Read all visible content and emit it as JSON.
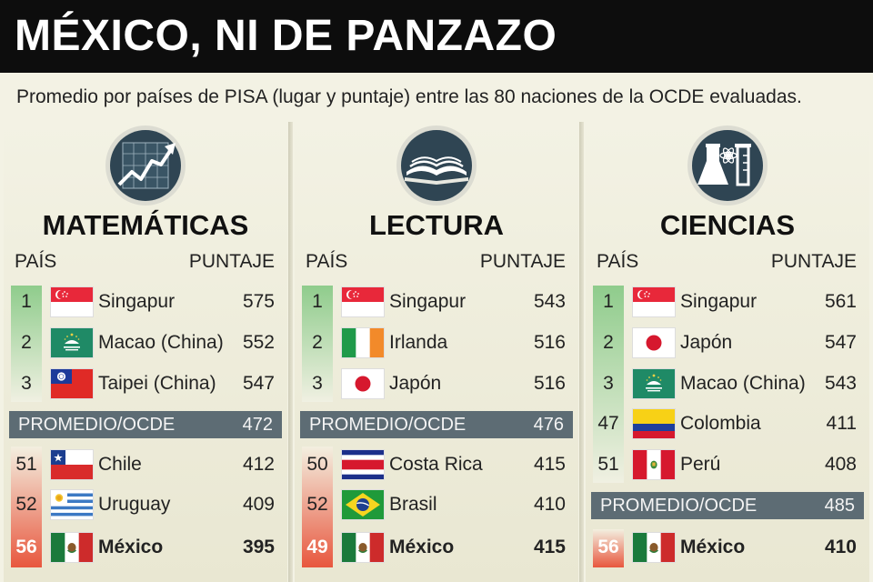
{
  "title": "MÉXICO, NI DE PANZAZO",
  "subtitle": "Promedio por países de PISA (lugar y puntaje) entre las 80 naciones de la OCDE evaluadas.",
  "header": {
    "country": "PAÍS",
    "score": "PUNTAJE"
  },
  "average_label": "PROMEDIO/OCDE",
  "sections": [
    {
      "title": "MATEMÁTICAS",
      "icon": "growth-chart-icon",
      "average": "472",
      "top": [
        {
          "rank": "1",
          "country": "Singapur",
          "score": "575",
          "flag": "singapore"
        },
        {
          "rank": "2",
          "country": "Macao (China)",
          "score": "552",
          "flag": "macao"
        },
        {
          "rank": "3",
          "country": "Taipei (China)",
          "score": "547",
          "flag": "taipei"
        }
      ],
      "bottom": [
        {
          "rank": "51",
          "country": "Chile",
          "score": "412",
          "flag": "chile"
        },
        {
          "rank": "52",
          "country": "Uruguay",
          "score": "409",
          "flag": "uruguay"
        },
        {
          "rank": "56",
          "country": "México",
          "score": "395",
          "flag": "mexico"
        }
      ]
    },
    {
      "title": "LECTURA",
      "icon": "open-book-icon",
      "average": "476",
      "top": [
        {
          "rank": "1",
          "country": "Singapur",
          "score": "543",
          "flag": "singapore"
        },
        {
          "rank": "2",
          "country": "Irlanda",
          "score": "516",
          "flag": "ireland"
        },
        {
          "rank": "3",
          "country": "Japón",
          "score": "516",
          "flag": "japan"
        }
      ],
      "bottom": [
        {
          "rank": "50",
          "country": "Costa Rica",
          "score": "415",
          "flag": "costarica"
        },
        {
          "rank": "52",
          "country": "Brasil",
          "score": "410",
          "flag": "brazil"
        },
        {
          "rank": "49",
          "country": "México",
          "score": "415",
          "flag": "mexico"
        }
      ]
    },
    {
      "title": "CIENCIAS",
      "icon": "lab-flask-icon",
      "average": "485",
      "top": [
        {
          "rank": "1",
          "country": "Singapur",
          "score": "561",
          "flag": "singapore"
        },
        {
          "rank": "2",
          "country": "Japón",
          "score": "547",
          "flag": "japan"
        },
        {
          "rank": "3",
          "country": "Macao (China)",
          "score": "543",
          "flag": "macao"
        },
        {
          "rank": "47",
          "country": "Colombia",
          "score": "411",
          "flag": "colombia"
        },
        {
          "rank": "51",
          "country": "Perú",
          "score": "408",
          "flag": "peru"
        }
      ],
      "bottom": [
        {
          "rank": "56",
          "country": "México",
          "score": "410",
          "flag": "mexico"
        }
      ]
    }
  ],
  "colors": {
    "title_bg": "#0d0d0d",
    "background": "#f3f2e4",
    "average_bar": "#5d6c74",
    "top_rank_green": "#8fcc8c",
    "bottom_rank_red": "#e8573e"
  }
}
